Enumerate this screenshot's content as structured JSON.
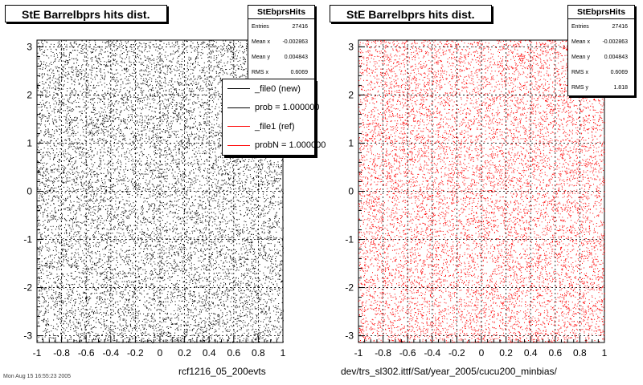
{
  "panels": [
    {
      "title": "StE Barrelbprs hits dist.",
      "footer": "rcf1216_05_200evts",
      "stats": {
        "name": "StEbprsHits",
        "rows": [
          {
            "label": "Entries",
            "value": "27416"
          },
          {
            "label": "Mean x",
            "value": "-0.002863"
          },
          {
            "label": "Mean y",
            "value": "0.004843"
          },
          {
            "label": "RMS x",
            "value": "0.6069"
          }
        ]
      }
    },
    {
      "title": "StE Barrelbprs hits dist.",
      "footer": "dev/trs_sl302.ittf/Sat/year_2005/cucu200_minbias/",
      "stats": {
        "name": "StEbprsHits",
        "rows": [
          {
            "label": "Entries",
            "value": "27416"
          },
          {
            "label": "Mean x",
            "value": "-0.002863"
          },
          {
            "label": "Mean y",
            "value": "0.004843"
          },
          {
            "label": "RMS x",
            "value": "0.6069"
          },
          {
            "label": "RMS y",
            "value": "1.818"
          }
        ]
      }
    }
  ],
  "legend": {
    "entries": [
      {
        "label": "_file0 (new)",
        "color": "#000000"
      },
      {
        "label": "prob = 1.000000",
        "color": "#000000"
      },
      {
        "label": "_file1 (ref)",
        "color": "#ff0000"
      },
      {
        "label": "probN = 1.000000",
        "color": "#ff0000"
      }
    ]
  },
  "timestamp": "Mon Aug 15 16:55:23 2005",
  "chart_data": [
    {
      "type": "scatter",
      "title": "StE Barrelbprs hits dist.",
      "series_color": "#000000",
      "distribution": "uniform",
      "entries": 27416,
      "xlim": [
        -1,
        1
      ],
      "ylim": [
        -3.14,
        3.14
      ],
      "xticks": [
        "-1",
        "-0.8",
        "-0.6",
        "-0.4",
        "-0.2",
        "0",
        "0.2",
        "0.4",
        "0.6",
        "0.8",
        "1"
      ],
      "yticks": [
        "-3",
        "-2",
        "-1",
        "0",
        "1",
        "2",
        "3"
      ],
      "grid": true,
      "legend_position": "top-right"
    },
    {
      "type": "scatter",
      "title": "StE Barrelbprs hits dist.",
      "series_color": "#ff0000",
      "distribution": "uniform",
      "entries": 27416,
      "xlim": [
        -1,
        1
      ],
      "ylim": [
        -3.14,
        3.14
      ],
      "xticks": [
        "-1",
        "-0.8",
        "-0.6",
        "-0.4",
        "-0.2",
        "0",
        "0.2",
        "0.4",
        "0.6",
        "0.8",
        "1"
      ],
      "yticks": [
        "-3",
        "-2",
        "-1",
        "0",
        "1",
        "2",
        "3"
      ],
      "grid": true
    }
  ]
}
